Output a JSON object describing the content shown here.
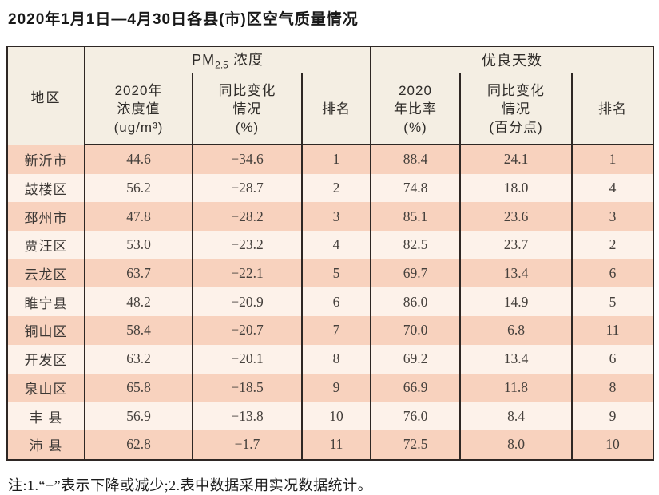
{
  "title": "2020年1月1日—4月30日各县(市)区空气质量情况",
  "table": {
    "region_header": "地区",
    "pm_group": {
      "prefix": "PM",
      "sub": "2.5",
      "suffix": " 浓度"
    },
    "good_group": "优良天数",
    "sub_headers": [
      [
        "2020年",
        "浓度值",
        "(ug/m³)"
      ],
      [
        "同比变化",
        "情况",
        "(%)"
      ],
      "排名",
      [
        "2020",
        "年比率",
        "(%)"
      ],
      [
        "同比变化",
        "情况",
        "(百分点)"
      ],
      "排名"
    ],
    "rows": [
      {
        "region": "新沂市",
        "pm_value": "44.6",
        "pm_change": "−34.6",
        "pm_rank": "1",
        "good_rate": "88.4",
        "good_change": "24.1",
        "good_rank": "1"
      },
      {
        "region": "鼓楼区",
        "pm_value": "56.2",
        "pm_change": "−28.7",
        "pm_rank": "2",
        "good_rate": "74.8",
        "good_change": "18.0",
        "good_rank": "4"
      },
      {
        "region": "邳州市",
        "pm_value": "47.8",
        "pm_change": "−28.2",
        "pm_rank": "3",
        "good_rate": "85.1",
        "good_change": "23.6",
        "good_rank": "3"
      },
      {
        "region": "贾汪区",
        "pm_value": "53.0",
        "pm_change": "−23.2",
        "pm_rank": "4",
        "good_rate": "82.5",
        "good_change": "23.7",
        "good_rank": "2"
      },
      {
        "region": "云龙区",
        "pm_value": "63.7",
        "pm_change": "−22.1",
        "pm_rank": "5",
        "good_rate": "69.7",
        "good_change": "13.4",
        "good_rank": "6"
      },
      {
        "region": "睢宁县",
        "pm_value": "48.2",
        "pm_change": "−20.9",
        "pm_rank": "6",
        "good_rate": "86.0",
        "good_change": "14.9",
        "good_rank": "5"
      },
      {
        "region": "铜山区",
        "pm_value": "58.4",
        "pm_change": "−20.7",
        "pm_rank": "7",
        "good_rate": "70.0",
        "good_change": "6.8",
        "good_rank": "11"
      },
      {
        "region": "开发区",
        "pm_value": "63.2",
        "pm_change": "−20.1",
        "pm_rank": "8",
        "good_rate": "69.2",
        "good_change": "13.4",
        "good_rank": "6"
      },
      {
        "region": "泉山区",
        "pm_value": "65.8",
        "pm_change": "−18.5",
        "pm_rank": "9",
        "good_rate": "66.9",
        "good_change": "11.8",
        "good_rank": "8"
      },
      {
        "region": "丰 县",
        "pm_value": "56.9",
        "pm_change": "−13.8",
        "pm_rank": "10",
        "good_rate": "76.0",
        "good_change": "8.4",
        "good_rank": "9"
      },
      {
        "region": "沛 县",
        "pm_value": "62.8",
        "pm_change": "−1.7",
        "pm_rank": "11",
        "good_rate": "72.5",
        "good_change": "8.0",
        "good_rank": "10"
      }
    ]
  },
  "note": "注:1.“−”表示下降或减少;2.表中数据采用实况数据统计。",
  "colors": {
    "stripe_odd": "#f8d2be",
    "stripe_even": "#fdf2ea",
    "header_bg": "#f4eee3",
    "border_dark": "#2e2724",
    "border_light": "#a1917f"
  }
}
